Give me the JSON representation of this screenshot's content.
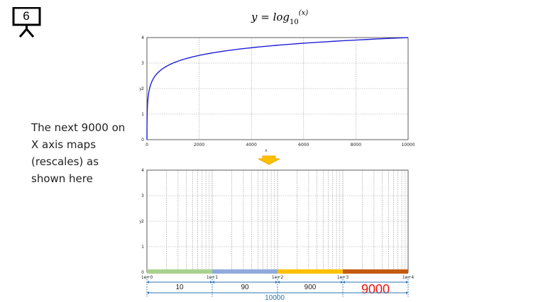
{
  "slide": {
    "number": "6"
  },
  "formula": {
    "base": "y = log",
    "subscript": "10",
    "superscript": "(x)"
  },
  "note": {
    "text": "The next 9000 on X axis maps (rescales) as shown here"
  },
  "colors": {
    "curve": "#1f1fd8",
    "arrow": "#f5b800",
    "dimension": "#2e75b6",
    "highlight": "#e8120c"
  },
  "arrow_icon": "down-arrow-icon",
  "chart_data": [
    {
      "type": "line",
      "x": [
        1,
        10,
        100,
        1000,
        10000
      ],
      "series": [
        {
          "values": [
            0,
            1,
            2,
            3,
            4
          ]
        }
      ],
      "xlabel": "x",
      "ylabel": "y",
      "xlim": [
        0,
        10000
      ],
      "ylim": [
        0,
        4
      ],
      "xticks": [
        "0",
        "2000",
        "4000",
        "6000",
        "8000",
        "10000"
      ],
      "yticks": [
        "0",
        "1",
        "2",
        "3",
        "4"
      ],
      "grid": true
    },
    {
      "type": "line",
      "x_scale": "log",
      "xlim": [
        1,
        10000
      ],
      "ylim": [
        0,
        4
      ],
      "ylabel": "y",
      "xticks": [
        "1e+0",
        "1e+1",
        "1e+2",
        "1e+3",
        "1e+4"
      ],
      "yticks": [
        "0",
        "1",
        "2",
        "3",
        "4"
      ],
      "grid": true,
      "segments": [
        {
          "span": [
            1,
            10
          ],
          "width_label": "10",
          "color": "#a9d18e"
        },
        {
          "span": [
            10,
            100
          ],
          "width_label": "90",
          "color": "#8faadc"
        },
        {
          "span": [
            100,
            1000
          ],
          "width_label": "900",
          "color": "#ffc000"
        },
        {
          "span": [
            1000,
            10000
          ],
          "width_label": "9000",
          "color": "#c55a11"
        }
      ],
      "total_label": "10000"
    }
  ]
}
